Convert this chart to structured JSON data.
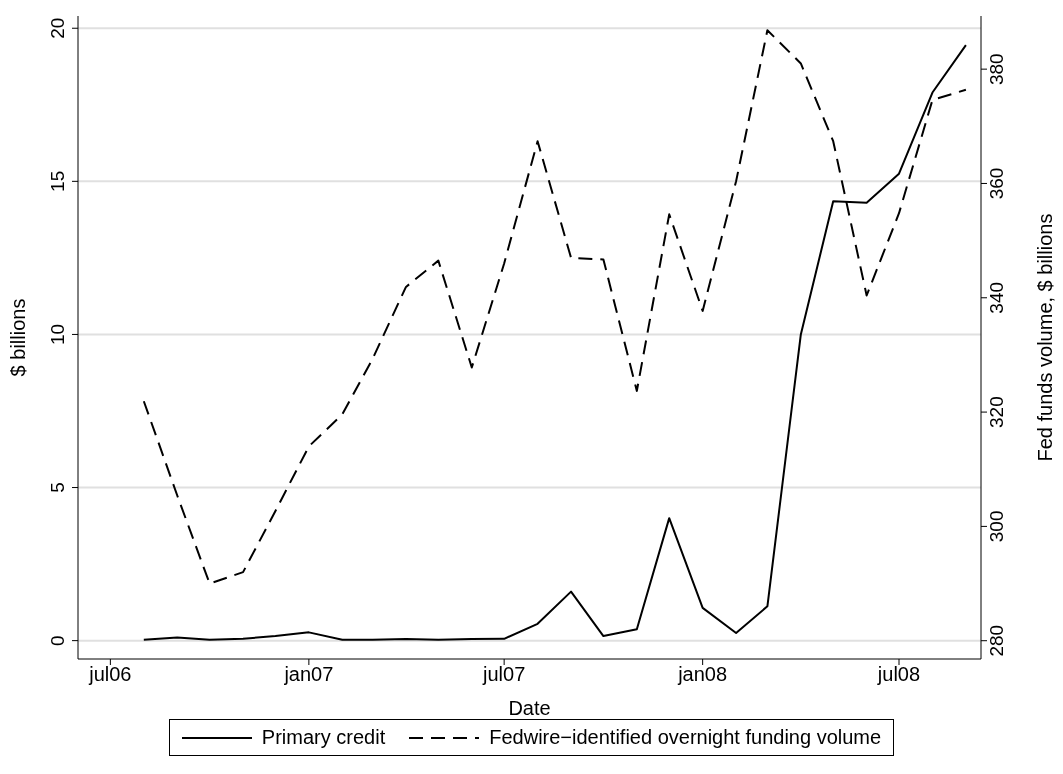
{
  "chart_data": {
    "type": "line",
    "xlabel": "Date",
    "ylabel": "$ billions",
    "y2label": "Fed funds volume, $ billions",
    "x": [
      "2006-08",
      "2006-09",
      "2006-10",
      "2006-11",
      "2006-12",
      "2007-01",
      "2007-02",
      "2007-03",
      "2007-04",
      "2007-05",
      "2007-06",
      "2007-07",
      "2007-08",
      "2007-09",
      "2007-10",
      "2007-11",
      "2007-12",
      "2008-01",
      "2008-02",
      "2008-03",
      "2008-04",
      "2008-05",
      "2008-06",
      "2008-07",
      "2008-08",
      "2008-09"
    ],
    "series": [
      {
        "name": "Primary credit",
        "color": "#000000",
        "line_style": "solid",
        "values": [
          0.03,
          0.1,
          0.03,
          0.06,
          0.15,
          0.27,
          0.03,
          0.03,
          0.05,
          0.03,
          0.05,
          0.06,
          0.55,
          1.6,
          0.15,
          0.37,
          4.0,
          1.07,
          0.25,
          1.12,
          10.0,
          14.35,
          14.3,
          15.25,
          17.9,
          19.45
        ]
      },
      {
        "name": "Fedwire−identified overnight funding volume",
        "color": "#000000",
        "line_style": "dashed",
        "axis": "y2",
        "values": [
          321.9,
          305.4,
          290,
          292,
          302.7,
          314,
          319.6,
          329.3,
          341.9,
          346.5,
          327.8,
          346,
          367.4,
          347,
          346.7,
          323.7,
          354.6,
          337.7,
          360.4,
          386.8,
          381,
          367.4,
          340.4,
          354.8,
          374.6,
          376.4
        ]
      }
    ],
    "xlim": [
      "2006-06",
      "2008-09-15"
    ],
    "xticks": [
      {
        "value": "2006-07",
        "label": "jul06"
      },
      {
        "value": "2007-01",
        "label": "jan07"
      },
      {
        "value": "2007-07",
        "label": "jul07"
      },
      {
        "value": "2008-01",
        "label": "jan08"
      },
      {
        "value": "2008-07",
        "label": "jul08"
      }
    ],
    "ylim": [
      -0.6,
      20.4
    ],
    "yticks": [
      0,
      5,
      10,
      15,
      20
    ],
    "y2lim": [
      276.8,
      389.3
    ],
    "y2ticks": [
      280,
      300,
      320,
      340,
      360,
      380
    ],
    "grid": "y",
    "legend": "bottom",
    "marker": "none"
  }
}
